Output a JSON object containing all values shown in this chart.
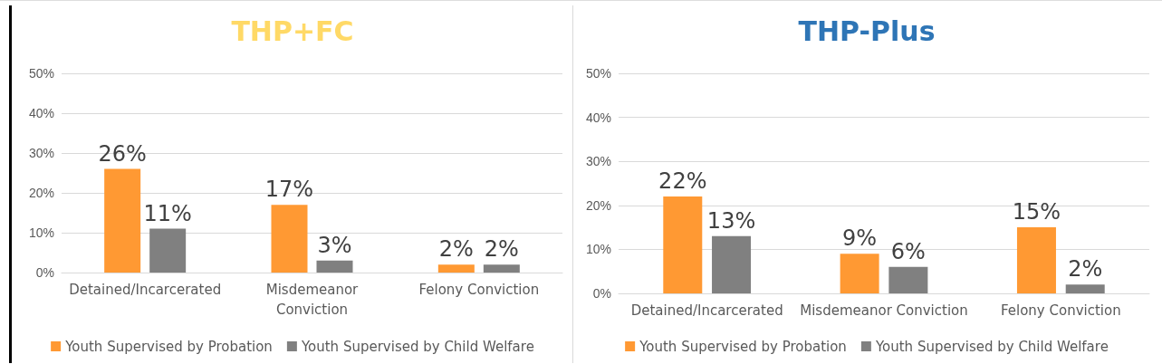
{
  "chart_data": [
    {
      "type": "bar",
      "title": "THP+FC",
      "categories": [
        "Detained/Incarcerated",
        "Misdemeanor\nConviction",
        "Felony Conviction"
      ],
      "series": [
        {
          "name": "Youth Supervised by Probation",
          "color": "#ff9933",
          "values": [
            26,
            17,
            2
          ],
          "value_labels": [
            "26%",
            "17%",
            "2%"
          ]
        },
        {
          "name": "Youth Supervised by Child Welfare",
          "color": "#808080",
          "values": [
            11,
            3,
            2
          ],
          "value_labels": [
            "11%",
            "3%",
            "2%"
          ]
        }
      ],
      "ylim": [
        0,
        50
      ],
      "yticks": [
        {
          "value": 0,
          "label": "0%"
        },
        {
          "value": 10,
          "label": "10%"
        },
        {
          "value": 20,
          "label": "20%"
        },
        {
          "value": 30,
          "label": "30%"
        },
        {
          "value": 40,
          "label": "40%"
        },
        {
          "value": 50,
          "label": "50%"
        }
      ],
      "grid": "y",
      "legend": "bottom"
    },
    {
      "type": "bar",
      "title": "THP-Plus",
      "categories": [
        "Detained/Incarcerated",
        "Misdemeanor Conviction",
        "Felony Conviction"
      ],
      "series": [
        {
          "name": "Youth Supervised by Probation",
          "color": "#ff9933",
          "values": [
            22,
            9,
            15
          ],
          "value_labels": [
            "22%",
            "9%",
            "15%"
          ]
        },
        {
          "name": "Youth Supervised by Child Welfare",
          "color": "#808080",
          "values": [
            13,
            6,
            2
          ],
          "value_labels": [
            "13%",
            "6%",
            "2%"
          ]
        }
      ],
      "ylim": [
        0,
        50
      ],
      "yticks": [
        {
          "value": 0,
          "label": "0%"
        },
        {
          "value": 10,
          "label": "10%"
        },
        {
          "value": 20,
          "label": "20%"
        },
        {
          "value": 30,
          "label": "30%"
        },
        {
          "value": 40,
          "label": "40%"
        },
        {
          "value": 50,
          "label": "50%"
        }
      ],
      "grid": "y",
      "legend": "bottom"
    }
  ]
}
